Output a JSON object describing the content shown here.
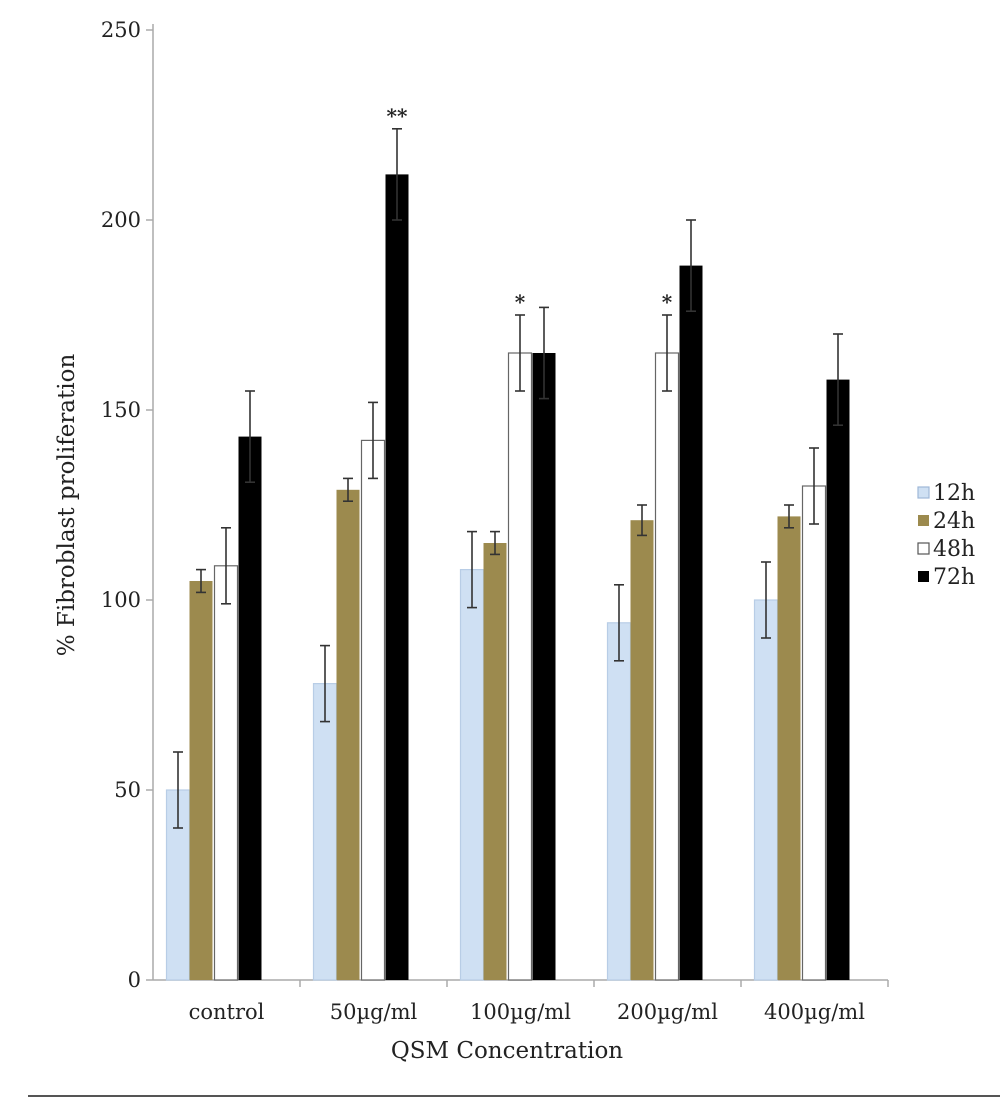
{
  "chart_data": {
    "type": "bar",
    "title": "",
    "xlabel": "QSM Concentration",
    "ylabel": "% Fibroblast proliferation",
    "ylim": [
      0,
      250
    ],
    "yticks": [
      0,
      50,
      100,
      150,
      200,
      250
    ],
    "grid": false,
    "legend_position": "right",
    "categories": [
      "control",
      "50µg/ml",
      "100µg/ml",
      "200µg/ml",
      "400µg/ml"
    ],
    "series": [
      {
        "name": "12h",
        "color": "#cfe0f3",
        "values": [
          50,
          78,
          108,
          94,
          100
        ],
        "errors": [
          10,
          10,
          10,
          10,
          10
        ]
      },
      {
        "name": "24h",
        "color": "#9c8a4e",
        "values": [
          105,
          129,
          115,
          121,
          122
        ],
        "errors": [
          3,
          3,
          3,
          4,
          3
        ]
      },
      {
        "name": "48h",
        "color": "#ffffff",
        "values": [
          109,
          142,
          165,
          165,
          130
        ],
        "errors": [
          10,
          10,
          10,
          10,
          10
        ]
      },
      {
        "name": "72h",
        "color": "#000000",
        "values": [
          143,
          212,
          165,
          188,
          158
        ],
        "errors": [
          12,
          12,
          12,
          12,
          12
        ]
      }
    ],
    "annotations": [
      {
        "text": "**",
        "category": "50µg/ml",
        "series": "72h"
      },
      {
        "text": "*",
        "category": "100µg/ml",
        "series": "48h"
      },
      {
        "text": "*",
        "category": "200µg/ml",
        "series": "48h"
      }
    ]
  }
}
